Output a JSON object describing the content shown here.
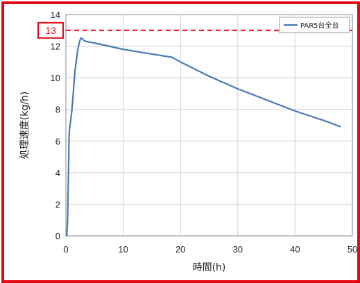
{
  "chart_data": {
    "type": "line",
    "title": "",
    "xlabel": "時間(h)",
    "ylabel": "処理速度(kg/h)",
    "xlim": [
      0,
      50
    ],
    "ylim": [
      0,
      14
    ],
    "x_ticks": [
      0,
      10,
      20,
      30,
      40,
      50
    ],
    "y_ticks": [
      0,
      2,
      4,
      6,
      8,
      10,
      12,
      14
    ],
    "grid": "horizontal and vertical",
    "legend_position": "top-right",
    "series": [
      {
        "name": "PAR5台全台",
        "color": "#4a78b5",
        "x": [
          0,
          0.15,
          0.3,
          0.4,
          0.5,
          0.55,
          0.65,
          0.8,
          1.0,
          1.2,
          1.4,
          1.6,
          1.8,
          2.0,
          2.2,
          2.4,
          2.6,
          2.8,
          3.0,
          3.5,
          5,
          10,
          15,
          18.5,
          20,
          25,
          30,
          35,
          40,
          45,
          48
        ],
        "y": [
          0,
          0,
          1.0,
          3.0,
          5.0,
          6.3,
          6.8,
          7.2,
          7.8,
          8.6,
          9.6,
          10.5,
          11.0,
          11.6,
          12.0,
          12.3,
          12.5,
          12.5,
          12.4,
          12.3,
          12.2,
          11.8,
          11.5,
          11.3,
          11.0,
          10.1,
          9.3,
          8.6,
          7.9,
          7.3,
          6.9
        ]
      }
    ],
    "reference_line": {
      "value": 13,
      "label": "13",
      "color": "#e30613"
    }
  }
}
